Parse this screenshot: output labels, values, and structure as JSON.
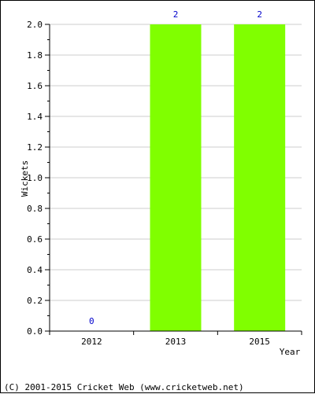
{
  "chart_data": {
    "type": "bar",
    "categories": [
      "2012",
      "2013",
      "2015"
    ],
    "values": [
      0,
      2,
      2
    ],
    "data_labels": [
      "0",
      "2",
      "2"
    ],
    "title": "",
    "xlabel": "Year",
    "ylabel": "Wickets",
    "ylim": [
      0,
      2.0
    ],
    "yticks": [
      "0.0",
      "0.2",
      "0.4",
      "0.6",
      "0.8",
      "1.0",
      "1.2",
      "1.4",
      "1.6",
      "1.8",
      "2.0"
    ],
    "grid": true,
    "colors": {
      "bar": "#80ff00",
      "data_label": "#0000cc",
      "grid": "#cccccc",
      "axis": "#000000"
    }
  },
  "footer": {
    "copyright": "(C) 2001-2015 Cricket Web (www.cricketweb.net)"
  }
}
